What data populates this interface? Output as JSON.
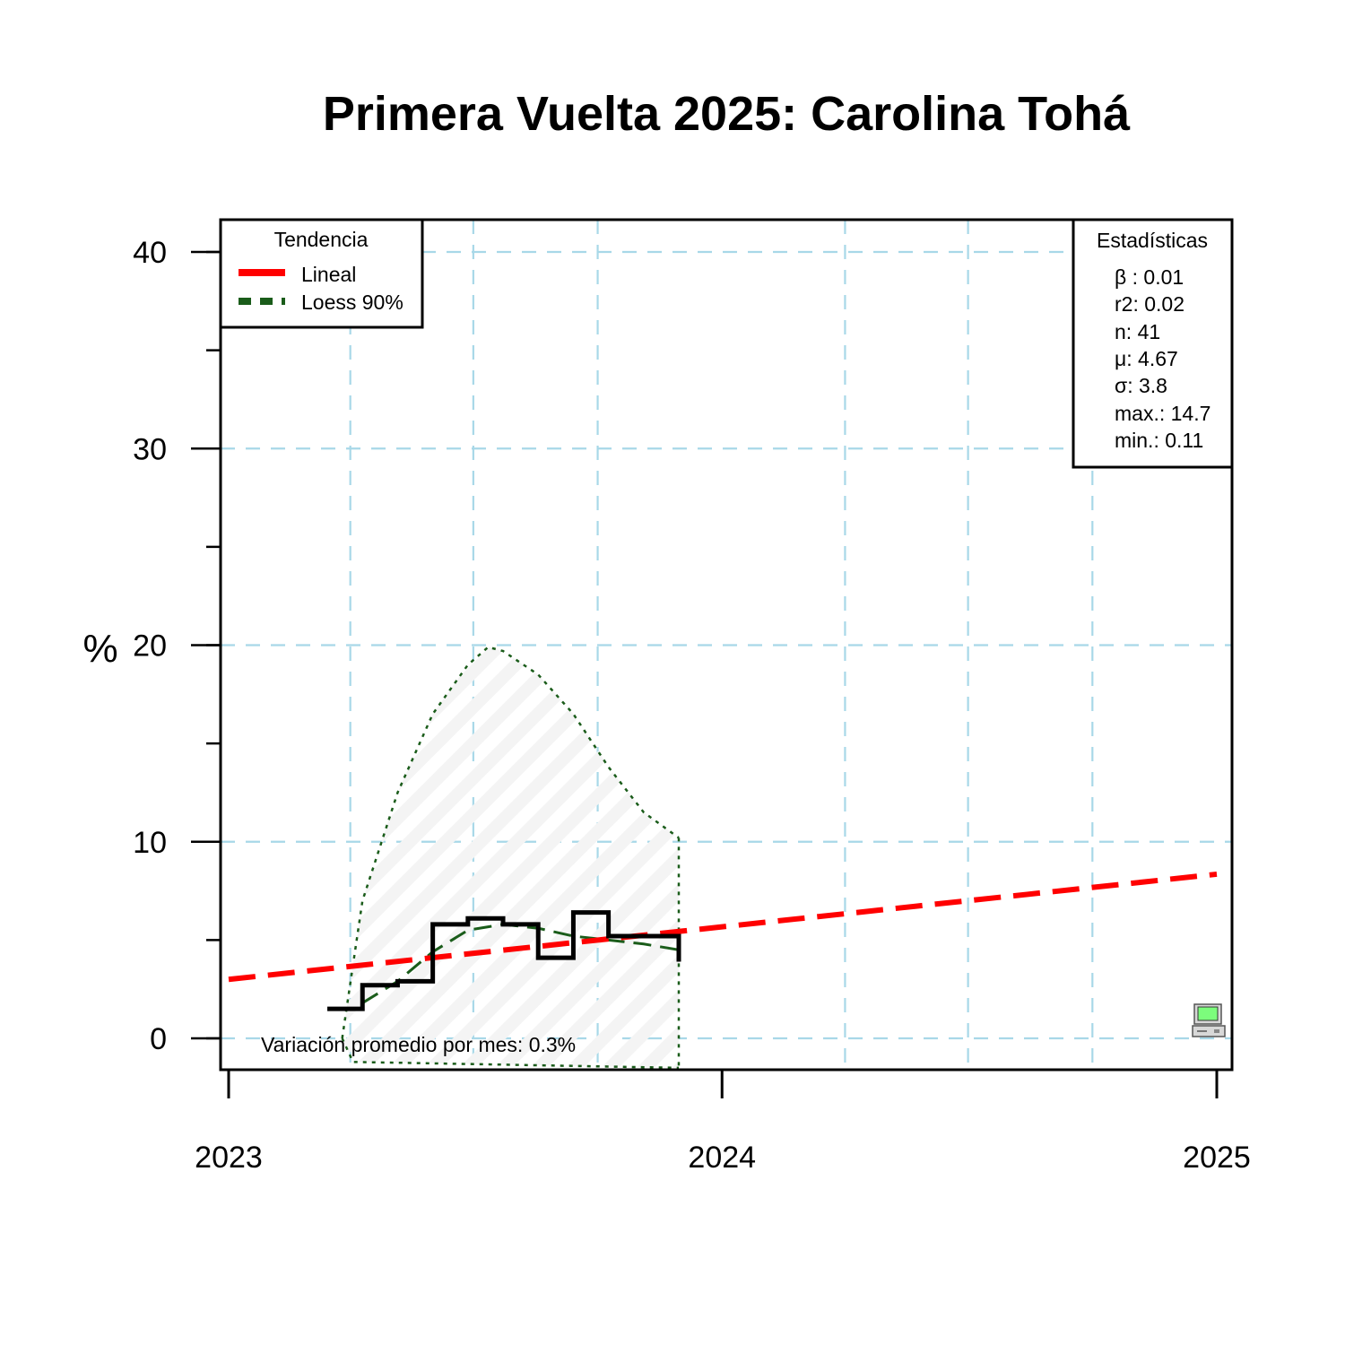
{
  "chart_data": {
    "type": "line",
    "title": "Primera Vuelta 2025: Carolina Tohá",
    "xlabel": "",
    "ylabel": "%",
    "xlim": [
      "2023-01-01",
      "2025-01-01"
    ],
    "ylim": [
      0,
      40
    ],
    "x_ticks": [
      {
        "date": "2023-01-01",
        "label": "2023"
      },
      {
        "date": "2024-01-01",
        "label": "2024"
      },
      {
        "date": "2025-01-01",
        "label": "2025"
      }
    ],
    "y_ticks": [
      0,
      10,
      20,
      30,
      40
    ],
    "grid": true,
    "grid_color": "#a8d8e8",
    "series": [
      {
        "kind": "step",
        "color": "#000000",
        "points": [
          {
            "x": "2023-03-15",
            "y": 1.5
          },
          {
            "x": "2023-04-10",
            "y": 2.7
          },
          {
            "x": "2023-05-06",
            "y": 2.9
          },
          {
            "x": "2023-06-01",
            "y": 5.8
          },
          {
            "x": "2023-06-27",
            "y": 6.1
          },
          {
            "x": "2023-07-23",
            "y": 5.8
          },
          {
            "x": "2023-08-18",
            "y": 4.1
          },
          {
            "x": "2023-09-13",
            "y": 6.4
          },
          {
            "x": "2023-10-09",
            "y": 5.2
          },
          {
            "x": "2023-11-04",
            "y": 5.2
          },
          {
            "x": "2023-11-30",
            "y": 3.9
          }
        ]
      },
      {
        "name": "Lineal",
        "kind": "linear",
        "color": "#ff0000",
        "points": [
          {
            "x": "2023-01-01",
            "y": 3.0
          },
          {
            "x": "2025-01-01",
            "y": 8.35
          }
        ]
      },
      {
        "name": "Loess 90%",
        "kind": "loess",
        "color": "#1a5c1a",
        "points": [
          {
            "x": "2023-04-10",
            "y": 1.8
          },
          {
            "x": "2023-05-06",
            "y": 2.9
          },
          {
            "x": "2023-06-01",
            "y": 4.4
          },
          {
            "x": "2023-06-27",
            "y": 5.5
          },
          {
            "x": "2023-07-23",
            "y": 5.8
          },
          {
            "x": "2023-08-18",
            "y": 5.6
          },
          {
            "x": "2023-09-13",
            "y": 5.2
          },
          {
            "x": "2023-10-09",
            "y": 5.0
          },
          {
            "x": "2023-11-04",
            "y": 4.8
          },
          {
            "x": "2023-11-30",
            "y": 4.5
          }
        ],
        "band_upper": [
          {
            "x": "2023-03-26",
            "y": 0
          },
          {
            "x": "2023-04-10",
            "y": 7.0
          },
          {
            "x": "2023-05-06",
            "y": 12.5
          },
          {
            "x": "2023-06-01",
            "y": 16.5
          },
          {
            "x": "2023-06-27",
            "y": 19.0
          },
          {
            "x": "2023-07-12",
            "y": 19.9
          },
          {
            "x": "2023-07-23",
            "y": 19.7
          },
          {
            "x": "2023-08-18",
            "y": 18.5
          },
          {
            "x": "2023-09-13",
            "y": 16.5
          },
          {
            "x": "2023-10-09",
            "y": 13.8
          },
          {
            "x": "2023-11-04",
            "y": 11.5
          },
          {
            "x": "2023-11-30",
            "y": 10.2
          }
        ],
        "band_lower": [
          {
            "x": "2023-03-26",
            "y": 0
          },
          {
            "x": "2023-04-03",
            "y": -1.2
          },
          {
            "x": "2023-11-30",
            "y": -1.5
          }
        ]
      }
    ]
  },
  "legend_trend": {
    "title": "Tendencia",
    "items": [
      {
        "label": "Lineal",
        "color": "#ff0000",
        "style": "solid"
      },
      {
        "label": "Loess 90%",
        "color": "#1a5c1a",
        "style": "dashed"
      }
    ]
  },
  "stats": {
    "title": "Estadísticas",
    "lines": [
      "β : 0.01",
      "r2: 0.02",
      "n: 41",
      "μ: 4.67",
      "σ: 3.8",
      "max.: 14.7",
      "min.: 0.11"
    ]
  },
  "note": "Variación promedio por mes: 0.3%",
  "icon": "computer-icon"
}
